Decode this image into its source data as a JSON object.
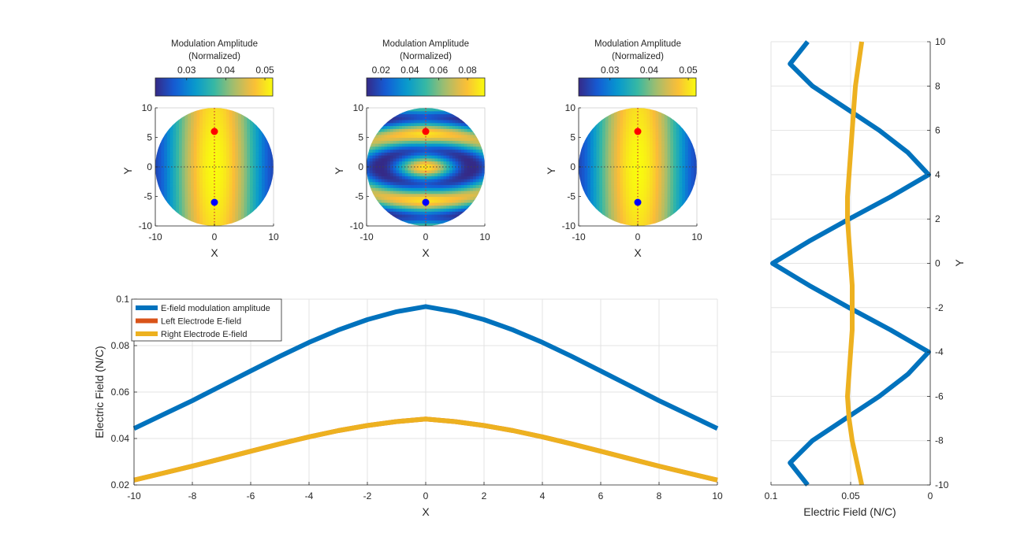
{
  "colors": {
    "blue_series": "#0072BD",
    "orange_series": "#D95319",
    "yellow_series": "#EDB120",
    "grid": "#e3e3e3",
    "axis": "#262626",
    "marker_red": "#ff0000",
    "marker_blue": "#0000ff"
  },
  "chart_data": [
    {
      "type": "heatmap",
      "panel": "top-left",
      "colorbar_title": [
        "Modulation Amplitude",
        "(Normalized)"
      ],
      "colorbar_range": [
        0.022,
        0.052
      ],
      "colorbar_ticks": [
        0.03,
        0.04,
        0.05
      ],
      "colorbar_tick_labels": [
        "0.03",
        "0.04",
        "0.05"
      ],
      "pattern": "single",
      "xlabel": "X",
      "ylabel": "Y",
      "xlim": [
        -10,
        10
      ],
      "ylim": [
        -10,
        10
      ],
      "xticks": [
        -10,
        0,
        10
      ],
      "yticks": [
        -10,
        -5,
        0,
        5,
        10
      ],
      "xtick_labels": [
        "-10",
        "0",
        "10"
      ],
      "ytick_labels": [
        "-10",
        "-5",
        "0",
        "5",
        "10"
      ],
      "electrodes": [
        {
          "x": 0,
          "y": 6,
          "color": "red"
        },
        {
          "x": 0,
          "y": -6,
          "color": "blue"
        }
      ]
    },
    {
      "type": "heatmap",
      "panel": "top-middle",
      "colorbar_title": [
        "Modulation Amplitude",
        "(Normalized)"
      ],
      "colorbar_range": [
        0.01,
        0.092
      ],
      "colorbar_ticks": [
        0.02,
        0.04,
        0.06,
        0.08
      ],
      "colorbar_tick_labels": [
        "0.02",
        "0.04",
        "0.06",
        "0.08"
      ],
      "pattern": "banded",
      "xlabel": "X",
      "ylabel": "Y",
      "xlim": [
        -10,
        10
      ],
      "ylim": [
        -10,
        10
      ],
      "xticks": [
        -10,
        0,
        10
      ],
      "yticks": [
        -10,
        -5,
        0,
        5,
        10
      ],
      "xtick_labels": [
        "-10",
        "0",
        "10"
      ],
      "ytick_labels": [
        "-10",
        "-5",
        "0",
        "5",
        "10"
      ],
      "electrodes": [
        {
          "x": 0,
          "y": 6,
          "color": "red"
        },
        {
          "x": 0,
          "y": -6,
          "color": "blue"
        }
      ]
    },
    {
      "type": "heatmap",
      "panel": "top-right",
      "colorbar_title": [
        "Modulation Amplitude",
        "(Normalized)"
      ],
      "colorbar_range": [
        0.022,
        0.052
      ],
      "colorbar_ticks": [
        0.03,
        0.04,
        0.05
      ],
      "colorbar_tick_labels": [
        "0.03",
        "0.04",
        "0.05"
      ],
      "pattern": "single",
      "xlabel": "X",
      "ylabel": "Y",
      "xlim": [
        -10,
        10
      ],
      "ylim": [
        -10,
        10
      ],
      "xticks": [
        -10,
        0,
        10
      ],
      "yticks": [
        -10,
        -5,
        0,
        5,
        10
      ],
      "xtick_labels": [
        "-10",
        "0",
        "10"
      ],
      "ytick_labels": [
        "-10",
        "-5",
        "0",
        "5",
        "10"
      ],
      "electrodes": [
        {
          "x": 0,
          "y": 6,
          "color": "red"
        },
        {
          "x": 0,
          "y": -6,
          "color": "blue"
        }
      ]
    },
    {
      "type": "line",
      "panel": "bottom",
      "xlabel": "X",
      "ylabel": "Electric Field (N/C)",
      "xlim": [
        -10,
        10
      ],
      "ylim": [
        0.02,
        0.1
      ],
      "grid": true,
      "legend_position": "top-left",
      "xticks": [
        -10,
        -8,
        -6,
        -4,
        -2,
        0,
        2,
        4,
        6,
        8,
        10
      ],
      "xtick_labels": [
        "-10",
        "-8",
        "-6",
        "-4",
        "-2",
        "0",
        "2",
        "4",
        "6",
        "8",
        "10"
      ],
      "yticks": [
        0.02,
        0.04,
        0.06,
        0.08,
        0.1
      ],
      "ytick_labels": [
        "0.02",
        "0.04",
        "0.06",
        "0.08",
        "0.1"
      ],
      "x": [
        -10,
        -9,
        -8,
        -7,
        -6,
        -5,
        -4,
        -3,
        -2,
        -1,
        0,
        1,
        2,
        3,
        4,
        5,
        6,
        7,
        8,
        9,
        10
      ],
      "series": [
        {
          "name": "E-field modulation amplitude",
          "color": "#0072BD",
          "values": [
            0.0443,
            0.0503,
            0.0563,
            0.0627,
            0.0691,
            0.0754,
            0.0814,
            0.0867,
            0.0912,
            0.0946,
            0.0968,
            0.0946,
            0.0912,
            0.0867,
            0.0814,
            0.0754,
            0.0691,
            0.0627,
            0.0563,
            0.0503,
            0.0443
          ]
        },
        {
          "name": "Left Electrode E-field",
          "color": "#D95319",
          "values": [
            0.0221,
            0.0251,
            0.0281,
            0.0313,
            0.0345,
            0.0377,
            0.0407,
            0.0434,
            0.0456,
            0.0473,
            0.0484,
            0.0473,
            0.0456,
            0.0434,
            0.0407,
            0.0377,
            0.0345,
            0.0313,
            0.0281,
            0.0251,
            0.0221
          ]
        },
        {
          "name": "Right Electrode E-field",
          "color": "#EDB120",
          "values": [
            0.0221,
            0.0251,
            0.0281,
            0.0313,
            0.0345,
            0.0377,
            0.0407,
            0.0434,
            0.0456,
            0.0473,
            0.0484,
            0.0473,
            0.0456,
            0.0434,
            0.0407,
            0.0377,
            0.0345,
            0.0313,
            0.0281,
            0.0251,
            0.0221
          ]
        }
      ]
    },
    {
      "type": "line",
      "panel": "right",
      "xlabel": "Electric Field (N/C)",
      "ylabel": "Y",
      "xlim": [
        0.1,
        0
      ],
      "x_reversed": true,
      "ylim": [
        -10,
        10
      ],
      "y_axis_location": "right",
      "grid": true,
      "xticks": [
        0.1,
        0.05,
        0
      ],
      "xtick_labels": [
        "0.1",
        "0.05",
        "0"
      ],
      "yticks": [
        -10,
        -8,
        -6,
        -4,
        -2,
        0,
        2,
        4,
        6,
        8,
        10
      ],
      "ytick_labels": [
        "-10",
        "-8",
        "-6",
        "-4",
        "-2",
        "0",
        "2",
        "4",
        "6",
        "8",
        "10"
      ],
      "y": [
        -10,
        -9,
        -8,
        -7,
        -6,
        -5,
        -4,
        -3,
        -2,
        -1,
        0,
        1,
        2,
        3,
        4,
        5,
        6,
        7,
        8,
        9,
        10
      ],
      "series": [
        {
          "name": "E-field modulation amplitude",
          "color": "#0072BD",
          "values": [
            0.077,
            0.088,
            0.074,
            0.053,
            0.032,
            0.014,
            0.001,
            0.025,
            0.051,
            0.076,
            0.099,
            0.076,
            0.051,
            0.025,
            0.001,
            0.014,
            0.032,
            0.053,
            0.074,
            0.088,
            0.077
          ]
        },
        {
          "name": "Right Electrode E-field",
          "color": "#EDB120",
          "values": [
            0.043,
            0.046,
            0.049,
            0.051,
            0.052,
            0.051,
            0.05,
            0.049,
            0.049,
            0.049,
            0.05,
            0.051,
            0.052,
            0.052,
            0.051,
            0.05,
            0.049,
            0.048,
            0.047,
            0.045,
            0.043
          ]
        }
      ]
    }
  ]
}
